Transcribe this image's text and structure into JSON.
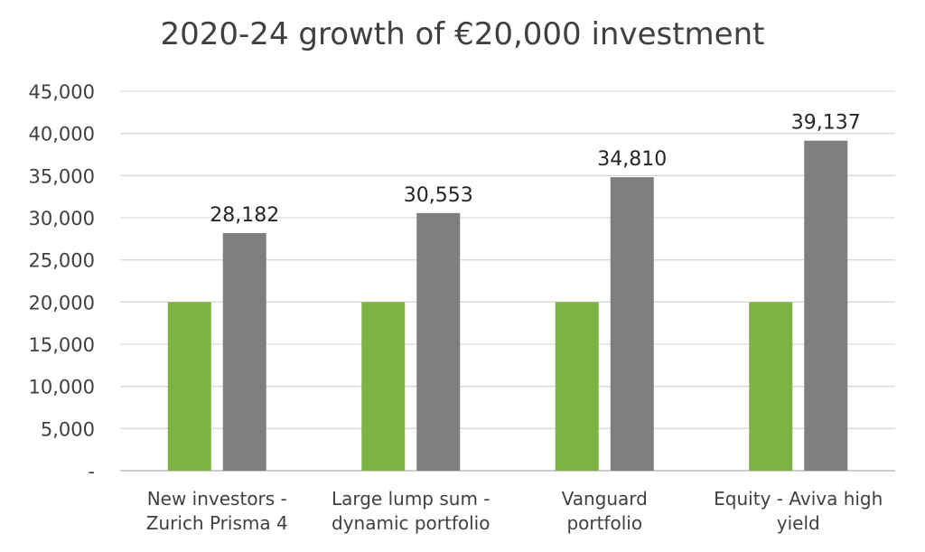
{
  "chart_data": {
    "type": "bar",
    "title": "2020-24 growth of €20,000 investment",
    "categories": [
      [
        "New investors -",
        "Zurich Prisma 4"
      ],
      [
        "Large lump sum -",
        "dynamic portfolio"
      ],
      [
        "Vanguard",
        "portfolio"
      ],
      [
        "Equity - Aviva high",
        "yield"
      ]
    ],
    "series": [
      {
        "values": [
          20000,
          20000,
          20000,
          20000
        ],
        "color": "#7cb342"
      },
      {
        "values": [
          28182,
          30553,
          34810,
          39137
        ],
        "color": "#7f7f7f",
        "data_labels": [
          "28,182",
          "30,553",
          "34,810",
          "39,137"
        ]
      }
    ],
    "ylim": [
      0,
      45000
    ],
    "y_ticks": [
      "-",
      "5,000",
      "10,000",
      "15,000",
      "20,000",
      "25,000",
      "30,000",
      "35,000",
      "40,000",
      "45,000"
    ],
    "grid": true,
    "legend": "none",
    "xlabel": "",
    "ylabel": ""
  }
}
